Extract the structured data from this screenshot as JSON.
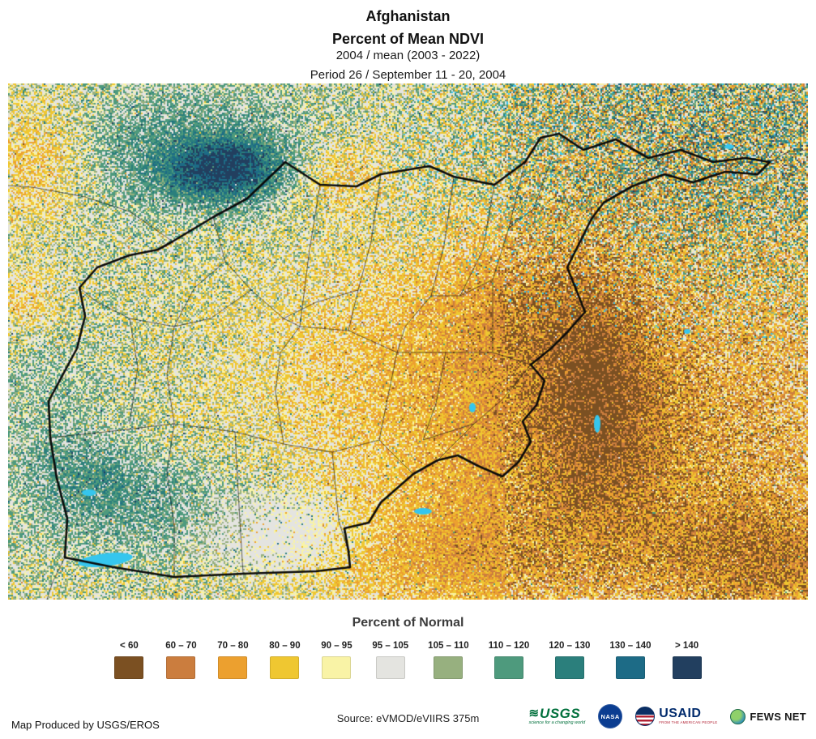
{
  "header": {
    "country": "Afghanistan",
    "title": "Percent of Mean NDVI",
    "subtitle": "2004 / mean (2003 - 2022)",
    "period": "Period 26 / September 11 - 20, 2004"
  },
  "map": {
    "water_color": "#35c6ee"
  },
  "legend": {
    "title": "Percent of Normal",
    "classes": [
      {
        "label": "< 60",
        "color": "#7b5022"
      },
      {
        "label": "60 – 70",
        "color": "#cb7d3e"
      },
      {
        "label": "70 – 80",
        "color": "#eca02f"
      },
      {
        "label": "80 – 90",
        "color": "#efc731"
      },
      {
        "label": "90 – 95",
        "color": "#f9f3a6"
      },
      {
        "label": "95 – 105",
        "color": "#e4e4e0"
      },
      {
        "label": "105 – 110",
        "color": "#97b07f"
      },
      {
        "label": "110 – 120",
        "color": "#4e9a7d"
      },
      {
        "label": "120 – 130",
        "color": "#2b7f7c"
      },
      {
        "label": "130 – 140",
        "color": "#1d6b86"
      },
      {
        "label": "> 140",
        "color": "#223f5f"
      }
    ]
  },
  "footer": {
    "credit": "Map Produced by USGS/EROS",
    "source": "Source: eVMOD/eVIIRS 375m",
    "logos": {
      "usgs": "USGS",
      "usgs_tagline": "science for a changing world",
      "nasa": "NASA",
      "usaid": "USAID",
      "usaid_tagline": "FROM THE AMERICAN PEOPLE",
      "fewsnet": "FEWS NET"
    }
  }
}
